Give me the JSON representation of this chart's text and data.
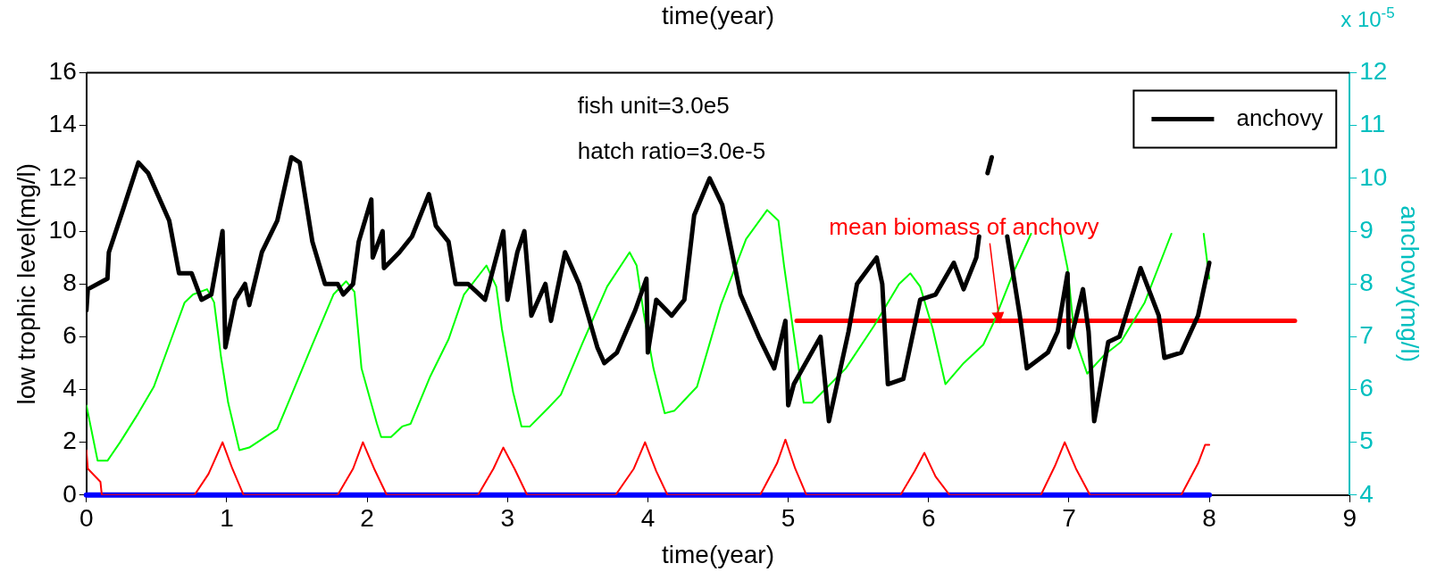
{
  "chart_data": {
    "type": "line",
    "title": "time(year)",
    "xlabel": "time(year)",
    "ylabel": "low trophic level(mg/l)",
    "y2label": "anchovy(mg/l)",
    "xlim": [
      0,
      9
    ],
    "xticks": [
      0,
      1,
      2,
      3,
      4,
      5,
      6,
      7,
      8,
      9
    ],
    "ylim": [
      0,
      16
    ],
    "yticks": [
      0,
      2,
      4,
      6,
      8,
      10,
      12,
      14,
      16
    ],
    "y2lim": [
      4,
      12
    ],
    "y2ticks": [
      4,
      5,
      6,
      7,
      8,
      9,
      10,
      11,
      12
    ],
    "grid": false,
    "legend": "top right",
    "marker": "none",
    "line_style": "solid",
    "annotations": [
      "fish unit=3.0e5",
      "hatch ratio=3.0e-5",
      {
        "text": "mean biomass of anchovy",
        "x": 6.5,
        "y": 6.5
      },
      "x 10$^{-5}$"
    ],
    "series": [
      {
        "name": "anchovy",
        "color": "#000000",
        "axis": "y2",
        "x": [
          0,
          0.01,
          0.15,
          0.16,
          0.26,
          0.37,
          0.44,
          0.59,
          0.66,
          0.75,
          0.82,
          0.89,
          0.97,
          0.99,
          1.06,
          1.13,
          1.16,
          1.25,
          1.36,
          1.46,
          1.52,
          1.61,
          1.7,
          1.79,
          1.83,
          1.9,
          1.94,
          2.03,
          2.04,
          2.11,
          2.12,
          2.23,
          2.32,
          2.44,
          2.49,
          2.58,
          2.63,
          2.72,
          2.84,
          2.89,
          2.97,
          3.0,
          3.07,
          3.12,
          3.17,
          3.27,
          3.31,
          3.41,
          3.51,
          3.64,
          3.69,
          3.78,
          3.91,
          3.99,
          4.0,
          4.06,
          4.17,
          4.26,
          4.33,
          4.44,
          4.53,
          4.66,
          4.79,
          4.9,
          4.98,
          5.0,
          5.04,
          5.23,
          5.29,
          5.43,
          5.49,
          5.63,
          5.67,
          5.71,
          5.82,
          5.94,
          6.05,
          6.18,
          6.25,
          6.34,
          6.36,
          6.38,
          6.42,
          6.45,
          6.5,
          6.56,
          6.65,
          6.7,
          6.85,
          6.92,
          6.99,
          7.0,
          7.1,
          7.14,
          7.18,
          7.28,
          7.36,
          7.51,
          7.64,
          7.68,
          7.8,
          7.92,
          8.0
        ],
        "values": [
          7.5,
          7.9,
          8.1,
          8.6,
          9.4,
          10.3,
          10.1,
          9.2,
          8.2,
          8.2,
          7.7,
          7.8,
          9.0,
          6.8,
          7.7,
          8.0,
          7.6,
          8.6,
          9.2,
          10.4,
          10.3,
          8.8,
          8.0,
          8.0,
          7.8,
          8.0,
          8.8,
          9.6,
          8.5,
          9.0,
          8.3,
          8.6,
          8.9,
          9.7,
          9.1,
          8.8,
          8.0,
          8.0,
          7.7,
          8.2,
          9.0,
          7.7,
          8.6,
          9.0,
          7.4,
          8.0,
          7.3,
          8.6,
          8.0,
          6.8,
          6.5,
          6.7,
          7.5,
          8.1,
          6.7,
          7.7,
          7.4,
          7.7,
          9.3,
          10.0,
          9.5,
          7.8,
          7.0,
          6.4,
          7.3,
          5.7,
          6.1,
          7.0,
          5.4,
          7.1,
          8.0,
          8.5,
          8.0,
          6.1,
          6.2,
          7.7,
          7.8,
          8.4,
          7.9,
          8.5,
          8.9,
          null,
          10.1,
          10.4,
          null,
          8.9,
          7.4,
          6.4,
          6.7,
          7.1,
          8.2,
          6.8,
          7.9,
          7.1,
          5.4,
          6.9,
          7.0,
          8.3,
          7.4,
          6.6,
          6.7,
          7.4,
          8.4
        ]
      },
      {
        "color": "#00ff00",
        "x": [
          0,
          0.08,
          0.15,
          0.24,
          0.37,
          0.48,
          0.59,
          0.7,
          0.76,
          0.86,
          0.91,
          0.96,
          1.01,
          1.09,
          1.16,
          1.36,
          1.47,
          1.61,
          1.76,
          1.85,
          1.91,
          1.96,
          2.07,
          2.1,
          2.17,
          2.25,
          2.31,
          2.45,
          2.58,
          2.69,
          2.85,
          2.92,
          2.96,
          3.04,
          3.1,
          3.16,
          3.29,
          3.38,
          3.53,
          3.71,
          3.87,
          3.92,
          3.97,
          4.04,
          4.12,
          4.19,
          4.35,
          4.52,
          4.7,
          4.85,
          4.93,
          4.97,
          5.05,
          5.11,
          5.17,
          5.41,
          5.61,
          5.79,
          5.87,
          5.94,
          6.03,
          6.12,
          6.25,
          6.39,
          6.46,
          6.61,
          6.73,
          6.8,
          6.94,
          6.99,
          7.04,
          7.13,
          7.25,
          7.37,
          7.54,
          7.73,
          7.8,
          7.96,
          8.0
        ],
        "values": [
          3.4,
          1.3,
          1.3,
          2.0,
          3.1,
          4.1,
          5.7,
          7.3,
          7.6,
          7.8,
          7.3,
          5.2,
          3.5,
          1.7,
          1.8,
          2.5,
          3.9,
          5.7,
          7.6,
          8.1,
          7.7,
          4.8,
          2.7,
          2.2,
          2.2,
          2.6,
          2.7,
          4.5,
          5.9,
          7.6,
          8.7,
          7.9,
          6.3,
          3.9,
          2.6,
          2.6,
          3.3,
          3.8,
          5.7,
          7.9,
          9.2,
          8.7,
          6.9,
          4.8,
          3.1,
          3.2,
          4.1,
          7.2,
          9.7,
          10.8,
          10.4,
          8.7,
          5.7,
          3.5,
          3.5,
          4.8,
          6.4,
          8.0,
          8.4,
          7.9,
          6.3,
          4.2,
          5.0,
          5.7,
          6.5,
          8.5,
          9.9,
          null,
          9.9,
          8.6,
          6.0,
          4.6,
          5.3,
          5.8,
          7.3,
          9.9,
          null,
          9.9,
          8.2
        ]
      },
      {
        "color": "#ff0000",
        "x": [
          0,
          0.01,
          0.1,
          0.11,
          0.77,
          0.87,
          0.97,
          1.04,
          1.12,
          1.79,
          1.9,
          1.97,
          2.05,
          2.14,
          2.79,
          2.9,
          2.97,
          3.05,
          3.14,
          3.77,
          3.9,
          3.98,
          4.06,
          4.14,
          4.8,
          4.92,
          4.98,
          5.05,
          5.13,
          5.8,
          5.9,
          5.97,
          6.05,
          6.15,
          6.8,
          6.9,
          6.97,
          7.05,
          7.15,
          7.8,
          7.92,
          7.97,
          8.0
        ],
        "values": [
          1.7,
          1.0,
          0.5,
          0,
          0,
          0.8,
          2.0,
          1.0,
          0,
          0,
          1.0,
          2.0,
          1.0,
          0,
          0,
          1.0,
          1.8,
          1.0,
          0,
          0,
          1.0,
          2.0,
          0.9,
          0,
          0,
          1.2,
          2.1,
          1.0,
          0,
          0,
          0.9,
          1.6,
          0.7,
          0,
          0,
          1.1,
          2.0,
          1.0,
          0,
          0,
          1.2,
          1.9,
          1.9
        ]
      },
      {
        "color": "#0000ff",
        "x": [
          0,
          8
        ],
        "values": [
          0,
          0
        ]
      },
      {
        "color": "#ff0000",
        "axis": "y2",
        "x": [
          5.06,
          8.61
        ],
        "values": [
          7.3,
          7.3
        ]
      }
    ]
  }
}
